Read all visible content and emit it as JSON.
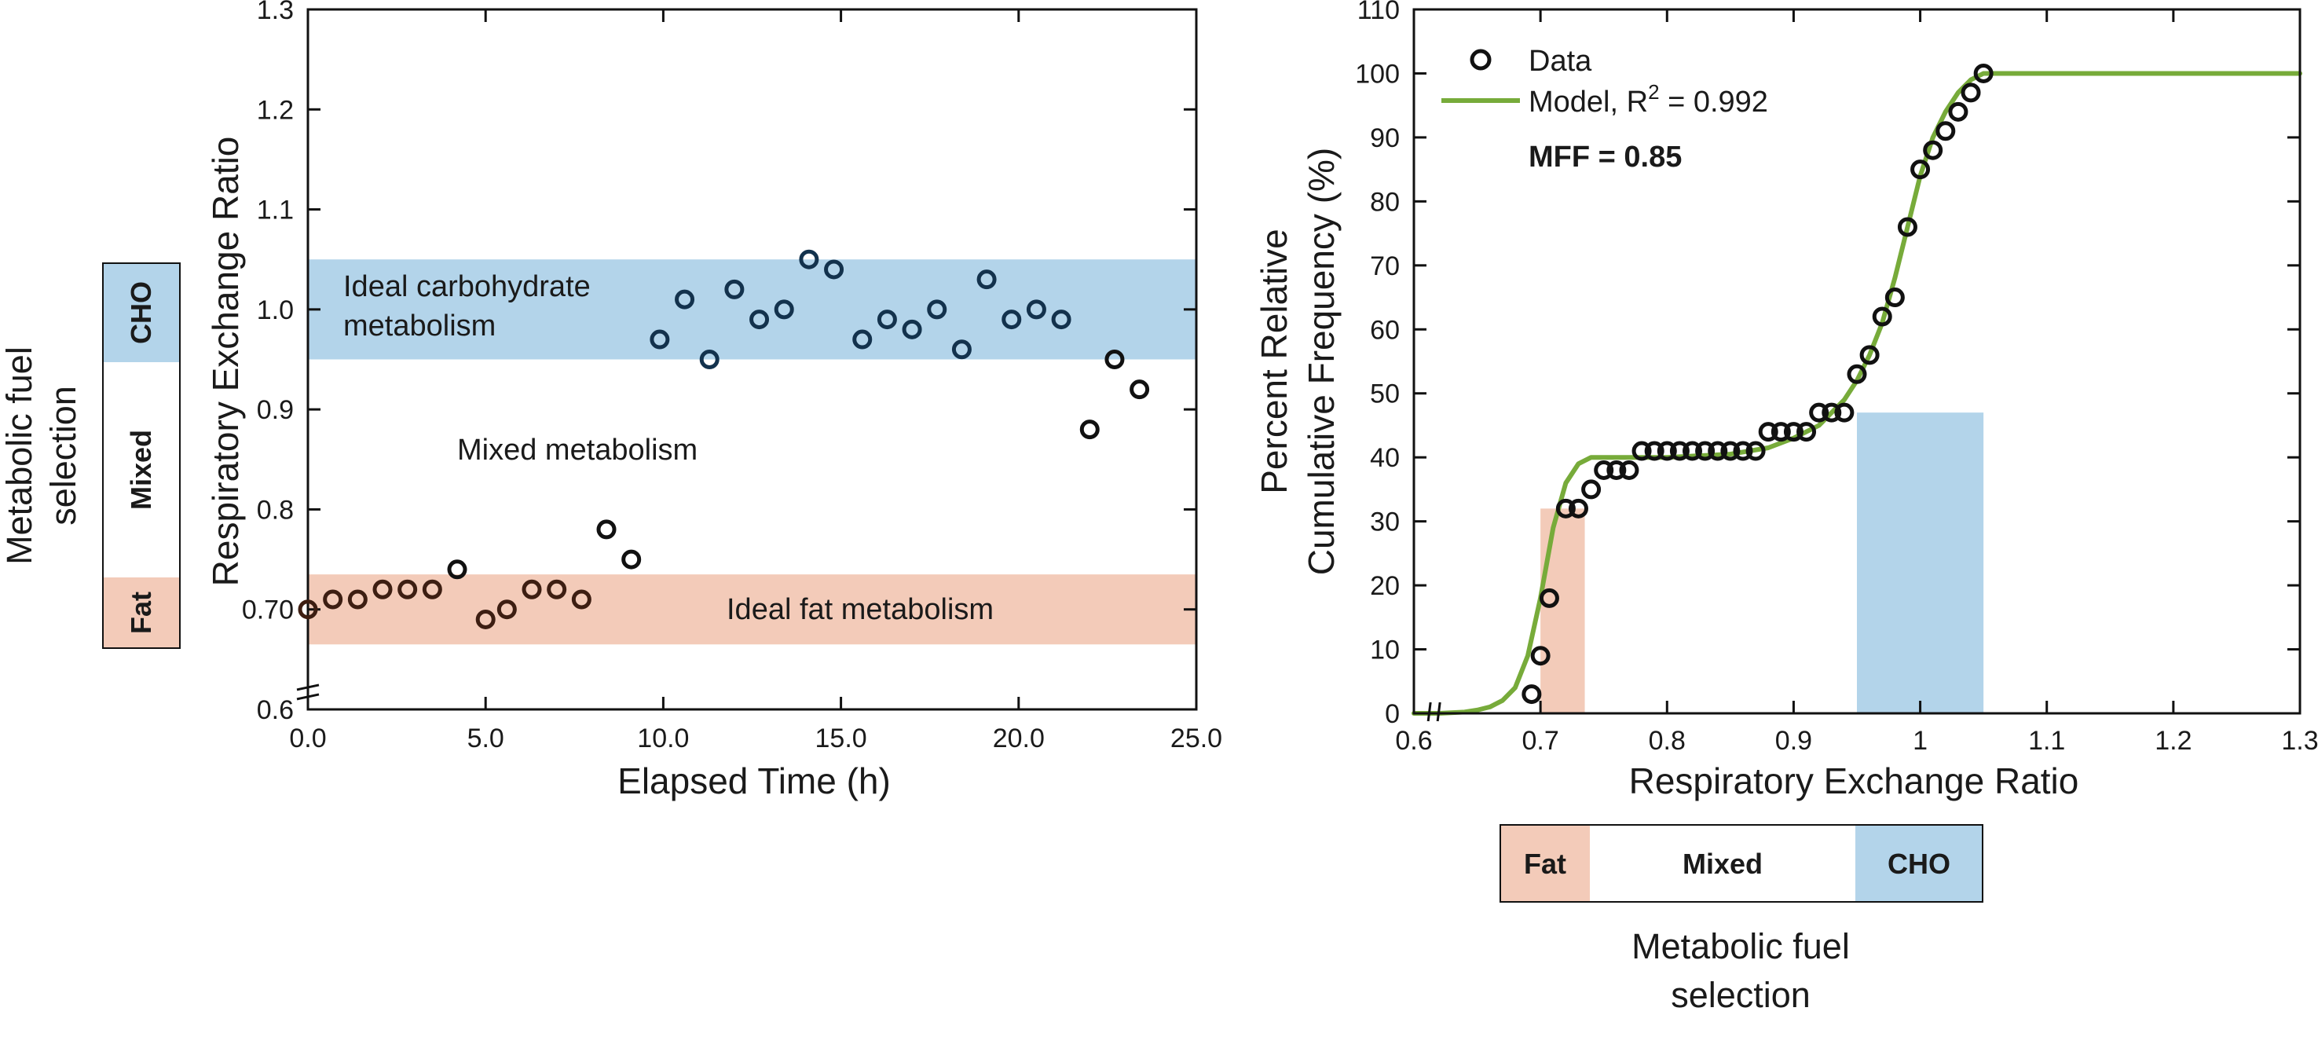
{
  "colors": {
    "cho": "#b3d4ea",
    "fat": "#f3cbb9",
    "model": "#77ab3a",
    "point_left_blue": "#13324d",
    "point_left_brown": "#3d1e12",
    "point_left_black": "#111111",
    "axis": "#111111"
  },
  "left_bar": {
    "title_line1": "Metabolic fuel",
    "title_line2": "selection",
    "cho": "CHO",
    "mixed": "Mixed",
    "fat": "Fat"
  },
  "bottom_bar": {
    "fat": "Fat",
    "mixed": "Mixed",
    "cho": "CHO",
    "title_line1": "Metabolic fuel",
    "title_line2": "selection"
  },
  "chart_data": [
    {
      "type": "scatter",
      "xlabel": "Elapsed Time (h)",
      "ylabel": "Respiratory Exchange Ratio",
      "xlim": [
        0,
        25
      ],
      "ylim": [
        0.6,
        1.3
      ],
      "xticks": [
        0,
        5,
        10,
        15,
        20,
        25
      ],
      "xtick_labels": [
        "0.0",
        "5.0",
        "10.0",
        "15.0",
        "20.0",
        "25.0"
      ],
      "yticks": [
        0.6,
        0.7,
        0.8,
        0.9,
        1.0,
        1.1,
        1.2,
        1.3
      ],
      "ytick_labels": [
        "0.6",
        "0.70",
        "0.8",
        "0.9",
        "1.0",
        "1.1",
        "1.2",
        "1.3"
      ],
      "axis_break": "y-axis break near 0.6",
      "bands": [
        {
          "name": "cho",
          "ymin": 0.95,
          "ymax": 1.05,
          "label_line1": "Ideal carbohydrate",
          "label_line2": "metabolism"
        },
        {
          "name": "fat",
          "ymin": 0.665,
          "ymax": 0.735,
          "label": "Ideal fat metabolism"
        }
      ],
      "region_label": "Mixed metabolism",
      "points": [
        {
          "x": 0.0,
          "y": 0.7,
          "group": "fat"
        },
        {
          "x": 0.7,
          "y": 0.71,
          "group": "fat"
        },
        {
          "x": 1.4,
          "y": 0.71,
          "group": "fat"
        },
        {
          "x": 2.1,
          "y": 0.72,
          "group": "fat"
        },
        {
          "x": 2.8,
          "y": 0.72,
          "group": "fat"
        },
        {
          "x": 3.5,
          "y": 0.72,
          "group": "fat"
        },
        {
          "x": 4.2,
          "y": 0.74,
          "group": "mixed"
        },
        {
          "x": 5.0,
          "y": 0.69,
          "group": "fat"
        },
        {
          "x": 5.6,
          "y": 0.7,
          "group": "fat"
        },
        {
          "x": 6.3,
          "y": 0.72,
          "group": "fat"
        },
        {
          "x": 7.0,
          "y": 0.72,
          "group": "fat"
        },
        {
          "x": 7.7,
          "y": 0.71,
          "group": "fat"
        },
        {
          "x": 8.4,
          "y": 0.78,
          "group": "mixed"
        },
        {
          "x": 9.1,
          "y": 0.75,
          "group": "mixed"
        },
        {
          "x": 9.9,
          "y": 0.97,
          "group": "cho"
        },
        {
          "x": 10.6,
          "y": 1.01,
          "group": "cho"
        },
        {
          "x": 11.3,
          "y": 0.95,
          "group": "cho"
        },
        {
          "x": 12.0,
          "y": 1.02,
          "group": "cho"
        },
        {
          "x": 12.7,
          "y": 0.99,
          "group": "cho"
        },
        {
          "x": 13.4,
          "y": 1.0,
          "group": "cho"
        },
        {
          "x": 14.1,
          "y": 1.05,
          "group": "cho"
        },
        {
          "x": 14.8,
          "y": 1.04,
          "group": "cho"
        },
        {
          "x": 15.6,
          "y": 0.97,
          "group": "cho"
        },
        {
          "x": 16.3,
          "y": 0.99,
          "group": "cho"
        },
        {
          "x": 17.0,
          "y": 0.98,
          "group": "cho"
        },
        {
          "x": 17.7,
          "y": 1.0,
          "group": "cho"
        },
        {
          "x": 18.4,
          "y": 0.96,
          "group": "cho"
        },
        {
          "x": 19.1,
          "y": 1.03,
          "group": "cho"
        },
        {
          "x": 19.8,
          "y": 0.99,
          "group": "cho"
        },
        {
          "x": 20.5,
          "y": 1.0,
          "group": "cho"
        },
        {
          "x": 21.2,
          "y": 0.99,
          "group": "cho"
        },
        {
          "x": 22.0,
          "y": 0.88,
          "group": "mixed"
        },
        {
          "x": 22.7,
          "y": 0.95,
          "group": "mixed"
        },
        {
          "x": 23.4,
          "y": 0.92,
          "group": "mixed"
        }
      ]
    },
    {
      "type": "scatter",
      "xlabel": "Respiratory Exchange Ratio",
      "ylabel_line1": "Percent Relative",
      "ylabel_line2": "Cumulative Frequency (%)",
      "xlim": [
        0.6,
        1.3
      ],
      "ylim": [
        0,
        110
      ],
      "xticks": [
        0.6,
        0.7,
        0.8,
        0.9,
        1.0,
        1.1,
        1.2,
        1.3
      ],
      "xtick_labels": [
        "0.6",
        "0.7",
        "0.8",
        "0.9",
        "1",
        "1.1",
        "1.2",
        "1.3"
      ],
      "yticks": [
        0,
        10,
        20,
        30,
        40,
        50,
        60,
        70,
        80,
        90,
        100,
        110
      ],
      "ytick_labels": [
        "0",
        "10",
        "20",
        "30",
        "40",
        "50",
        "60",
        "70",
        "80",
        "90",
        "100",
        "110"
      ],
      "axis_break": "x-axis break near 0.6",
      "legend": {
        "data": "Data",
        "model_prefix": "Model, R",
        "model_sup": "2",
        "model_suffix": " = 0.992",
        "mff": "MFF = 0.85",
        "position": "top-left"
      },
      "shaded": [
        {
          "name": "fat",
          "xmin": 0.7,
          "xmax": 0.735
        },
        {
          "name": "cho",
          "xmin": 0.95,
          "xmax": 1.05
        }
      ],
      "data_points": [
        {
          "x": 0.693,
          "y": 3
        },
        {
          "x": 0.7,
          "y": 9
        },
        {
          "x": 0.707,
          "y": 18
        },
        {
          "x": 0.72,
          "y": 32
        },
        {
          "x": 0.73,
          "y": 32
        },
        {
          "x": 0.74,
          "y": 35
        },
        {
          "x": 0.75,
          "y": 38
        },
        {
          "x": 0.76,
          "y": 38
        },
        {
          "x": 0.77,
          "y": 38
        },
        {
          "x": 0.78,
          "y": 41
        },
        {
          "x": 0.79,
          "y": 41
        },
        {
          "x": 0.8,
          "y": 41
        },
        {
          "x": 0.81,
          "y": 41
        },
        {
          "x": 0.82,
          "y": 41
        },
        {
          "x": 0.83,
          "y": 41
        },
        {
          "x": 0.84,
          "y": 41
        },
        {
          "x": 0.85,
          "y": 41
        },
        {
          "x": 0.86,
          "y": 41
        },
        {
          "x": 0.87,
          "y": 41
        },
        {
          "x": 0.88,
          "y": 44
        },
        {
          "x": 0.89,
          "y": 44
        },
        {
          "x": 0.9,
          "y": 44
        },
        {
          "x": 0.91,
          "y": 44
        },
        {
          "x": 0.92,
          "y": 47
        },
        {
          "x": 0.93,
          "y": 47
        },
        {
          "x": 0.94,
          "y": 47
        },
        {
          "x": 0.95,
          "y": 53
        },
        {
          "x": 0.96,
          "y": 56
        },
        {
          "x": 0.97,
          "y": 62
        },
        {
          "x": 0.98,
          "y": 65
        },
        {
          "x": 0.99,
          "y": 76
        },
        {
          "x": 1.0,
          "y": 85
        },
        {
          "x": 1.01,
          "y": 88
        },
        {
          "x": 1.02,
          "y": 91
        },
        {
          "x": 1.03,
          "y": 94
        },
        {
          "x": 1.04,
          "y": 97
        },
        {
          "x": 1.05,
          "y": 100
        }
      ],
      "model_curve": {
        "x": [
          0.6,
          0.62,
          0.64,
          0.65,
          0.66,
          0.67,
          0.68,
          0.69,
          0.7,
          0.71,
          0.72,
          0.73,
          0.74,
          0.76,
          0.8,
          0.85,
          0.88,
          0.9,
          0.92,
          0.93,
          0.94,
          0.95,
          0.96,
          0.97,
          0.98,
          0.99,
          1.0,
          1.01,
          1.02,
          1.03,
          1.04,
          1.05,
          1.1,
          1.2,
          1.3
        ],
        "y": [
          0,
          0,
          0.2,
          0.5,
          1,
          2,
          4,
          9,
          18,
          29,
          36,
          39,
          40,
          40,
          40,
          40.5,
          41.5,
          43,
          45,
          47,
          49,
          52,
          56,
          61,
          68,
          76,
          84,
          90,
          94,
          97,
          99,
          100,
          100,
          100,
          100
        ]
      }
    }
  ]
}
